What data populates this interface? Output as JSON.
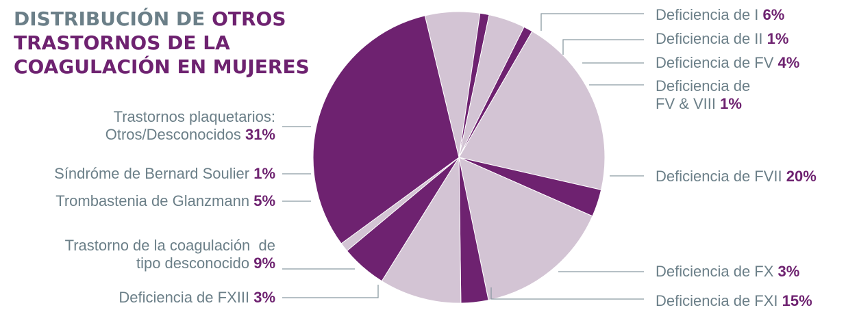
{
  "title": {
    "part1": "DISTRIBUCIÓN DE ",
    "part2": "OTROS TRASTORNOS DE LA COAGULACIÓN EN MUJERES"
  },
  "colors": {
    "dark": "#6e2270",
    "light": "#d3c4d4",
    "text": "#6b7f88",
    "leader": "#8a9aa2"
  },
  "chart_data": {
    "type": "pie",
    "slices": [
      {
        "name": "Deficiencia de I",
        "value": 6,
        "pct": "6%",
        "color": "#d3c4d4"
      },
      {
        "name": "Deficiencia de II",
        "value": 1,
        "pct": "1%",
        "color": "#6e2270"
      },
      {
        "name": "Deficiencia de FV",
        "value": 4,
        "pct": "4%",
        "color": "#d3c4d4"
      },
      {
        "name": "Deficiencia de FV & VIII",
        "value": 1,
        "pct": "1%",
        "color": "#6e2270"
      },
      {
        "name": "Deficiencia de FVII",
        "value": 20,
        "pct": "20%",
        "color": "#d3c4d4"
      },
      {
        "name": "Deficiencia de FX",
        "value": 3,
        "pct": "3%",
        "color": "#6e2270"
      },
      {
        "name": "Deficiencia de FXI",
        "value": 15,
        "pct": "15%",
        "color": "#d3c4d4"
      },
      {
        "name": "Deficiencia de FXIII",
        "value": 3,
        "pct": "3%",
        "color": "#6e2270"
      },
      {
        "name": "Trastorno de la coagulación  de tipo desconocido",
        "value": 9,
        "pct": "9%",
        "color": "#d3c4d4"
      },
      {
        "name": "Trombastenia de Glanzmann",
        "value": 5,
        "pct": "5%",
        "color": "#6e2270"
      },
      {
        "name": "Síndróme de Bernard Soulier",
        "value": 1,
        "pct": "1%",
        "color": "#d3c4d4"
      },
      {
        "name": "Trastornos plaquetarios: Otros/Desconocidos",
        "value": 31,
        "pct": "31%",
        "color": "#6e2270"
      }
    ]
  },
  "labels": {
    "def_i": {
      "text": "Deficiencia de I ",
      "pct": "6%"
    },
    "def_ii": {
      "text": "Deficiencia de II ",
      "pct": "1%"
    },
    "def_fv": {
      "text": "Deficiencia de FV ",
      "pct": "4%"
    },
    "def_fv_viii": {
      "line1": "Deficiencia de",
      "line2": "FV & VIII ",
      "pct": "1%"
    },
    "def_fvii": {
      "text": "Deficiencia de FVII ",
      "pct": "20%"
    },
    "def_fx": {
      "text": "Deficiencia de FX ",
      "pct": "3%"
    },
    "def_fxi": {
      "text": "Deficiencia de FXI ",
      "pct": "15%"
    },
    "def_fxiii": {
      "text": "Deficiencia de FXIII ",
      "pct": "3%"
    },
    "desconocido": {
      "line1": "Trastorno de la coagulación  de",
      "line2": "tipo desconocido ",
      "pct": "9%"
    },
    "glanzmann": {
      "text": "Trombastenia de Glanzmann ",
      "pct": "5%"
    },
    "bernard": {
      "text": "Síndróme de Bernard Soulier ",
      "pct": "1%"
    },
    "plaquetarios": {
      "line1": "Trastornos plaquetarios:",
      "line2": "Otros/Desconocidos ",
      "pct": "31%"
    }
  }
}
